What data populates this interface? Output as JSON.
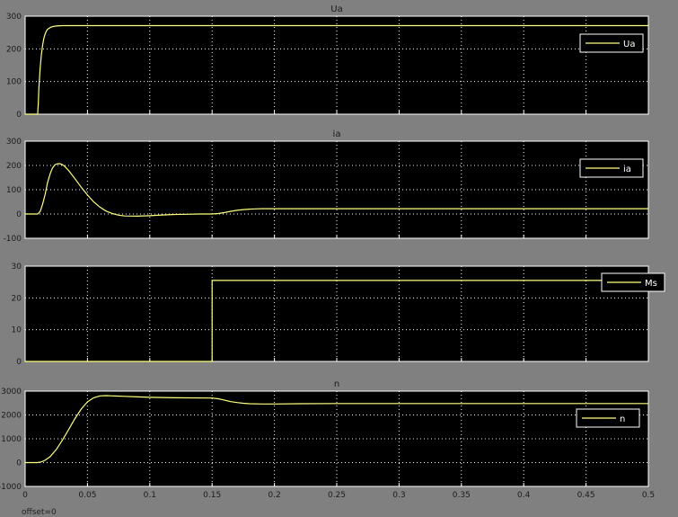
{
  "window": {
    "footer_text": "offset=0"
  },
  "chart_data": [
    {
      "type": "line",
      "title": "Ua",
      "ylim": [
        0,
        300
      ],
      "yticks": [
        0,
        100,
        200,
        300
      ],
      "xlim": [
        0,
        0.5
      ],
      "xticks_labeled": false,
      "grid": true,
      "legend": {
        "placement": "top-right",
        "entries": [
          "Ua"
        ]
      },
      "series": [
        {
          "name": "Ua",
          "color": "#ffff80",
          "x": [
            0,
            0.01,
            0.0105,
            0.011,
            0.012,
            0.013,
            0.014,
            0.015,
            0.016,
            0.017,
            0.018,
            0.02,
            0.022,
            0.025,
            0.03,
            0.04,
            0.5
          ],
          "y": [
            0,
            0,
            30,
            80,
            140,
            180,
            210,
            232,
            245,
            254,
            260,
            265,
            268,
            270,
            271,
            271,
            271
          ]
        }
      ]
    },
    {
      "type": "line",
      "title": "ia",
      "ylim": [
        -100,
        300
      ],
      "yticks": [
        -100,
        0,
        100,
        200,
        300
      ],
      "xlim": [
        0,
        0.5
      ],
      "xticks_labeled": false,
      "grid": true,
      "legend": {
        "placement": "top-right",
        "entries": [
          "ia"
        ]
      },
      "series": [
        {
          "name": "ia",
          "color": "#ffff80",
          "x": [
            0,
            0.01,
            0.012,
            0.014,
            0.016,
            0.018,
            0.02,
            0.022,
            0.024,
            0.026,
            0.028,
            0.03,
            0.032,
            0.035,
            0.04,
            0.045,
            0.05,
            0.055,
            0.06,
            0.065,
            0.07,
            0.075,
            0.08,
            0.09,
            0.1,
            0.11,
            0.12,
            0.13,
            0.14,
            0.15,
            0.155,
            0.16,
            0.165,
            0.17,
            0.175,
            0.18,
            0.185,
            0.19,
            0.2,
            0.5
          ],
          "y": [
            0,
            0,
            10,
            40,
            80,
            130,
            165,
            190,
            203,
            207,
            207,
            203,
            195,
            178,
            145,
            110,
            78,
            50,
            28,
            12,
            2,
            -5,
            -8,
            -9,
            -7,
            -4,
            -2,
            -1,
            0,
            0,
            2,
            6,
            11,
            15,
            18,
            20,
            21,
            22,
            22,
            22
          ]
        }
      ]
    },
    {
      "type": "line",
      "title": "",
      "ylim": [
        0,
        30
      ],
      "yticks": [
        0,
        10,
        20,
        30
      ],
      "xlim": [
        0,
        0.5
      ],
      "xticks_labeled": false,
      "grid": true,
      "legend": {
        "placement": "top-right",
        "entries": [
          "Ms"
        ]
      },
      "series": [
        {
          "name": "Ms",
          "color": "#ffff80",
          "x": [
            0,
            0.15,
            0.15,
            0.5
          ],
          "y": [
            0,
            0,
            25.5,
            25.5
          ]
        }
      ]
    },
    {
      "type": "line",
      "title": "n",
      "ylim": [
        -1000,
        3000
      ],
      "yticks": [
        -1000,
        0,
        1000,
        2000,
        3000
      ],
      "xlim": [
        0,
        0.5
      ],
      "xticks": [
        0,
        0.05,
        0.1,
        0.15,
        0.2,
        0.25,
        0.3,
        0.35,
        0.4,
        0.45,
        0.5
      ],
      "xtick_labels": [
        "0",
        "0.05",
        "0.1",
        "0.15",
        "0.2",
        "0.25",
        "0.3",
        "0.35",
        "0.4",
        "0.45",
        "0.5"
      ],
      "xticks_labeled": true,
      "grid": true,
      "legend": {
        "placement": "top-right",
        "entries": [
          "n"
        ]
      },
      "series": [
        {
          "name": "n",
          "color": "#ffff80",
          "x": [
            0,
            0.01,
            0.013,
            0.016,
            0.02,
            0.025,
            0.03,
            0.035,
            0.04,
            0.045,
            0.05,
            0.055,
            0.06,
            0.065,
            0.07,
            0.08,
            0.09,
            0.1,
            0.12,
            0.15,
            0.155,
            0.16,
            0.165,
            0.17,
            0.175,
            0.18,
            0.19,
            0.2,
            0.22,
            0.25,
            0.5
          ],
          "y": [
            0,
            0,
            30,
            100,
            250,
            550,
            950,
            1400,
            1850,
            2250,
            2550,
            2720,
            2800,
            2810,
            2800,
            2780,
            2760,
            2740,
            2720,
            2710,
            2680,
            2620,
            2560,
            2520,
            2490,
            2470,
            2460,
            2460,
            2470,
            2480,
            2480
          ]
        }
      ]
    }
  ]
}
